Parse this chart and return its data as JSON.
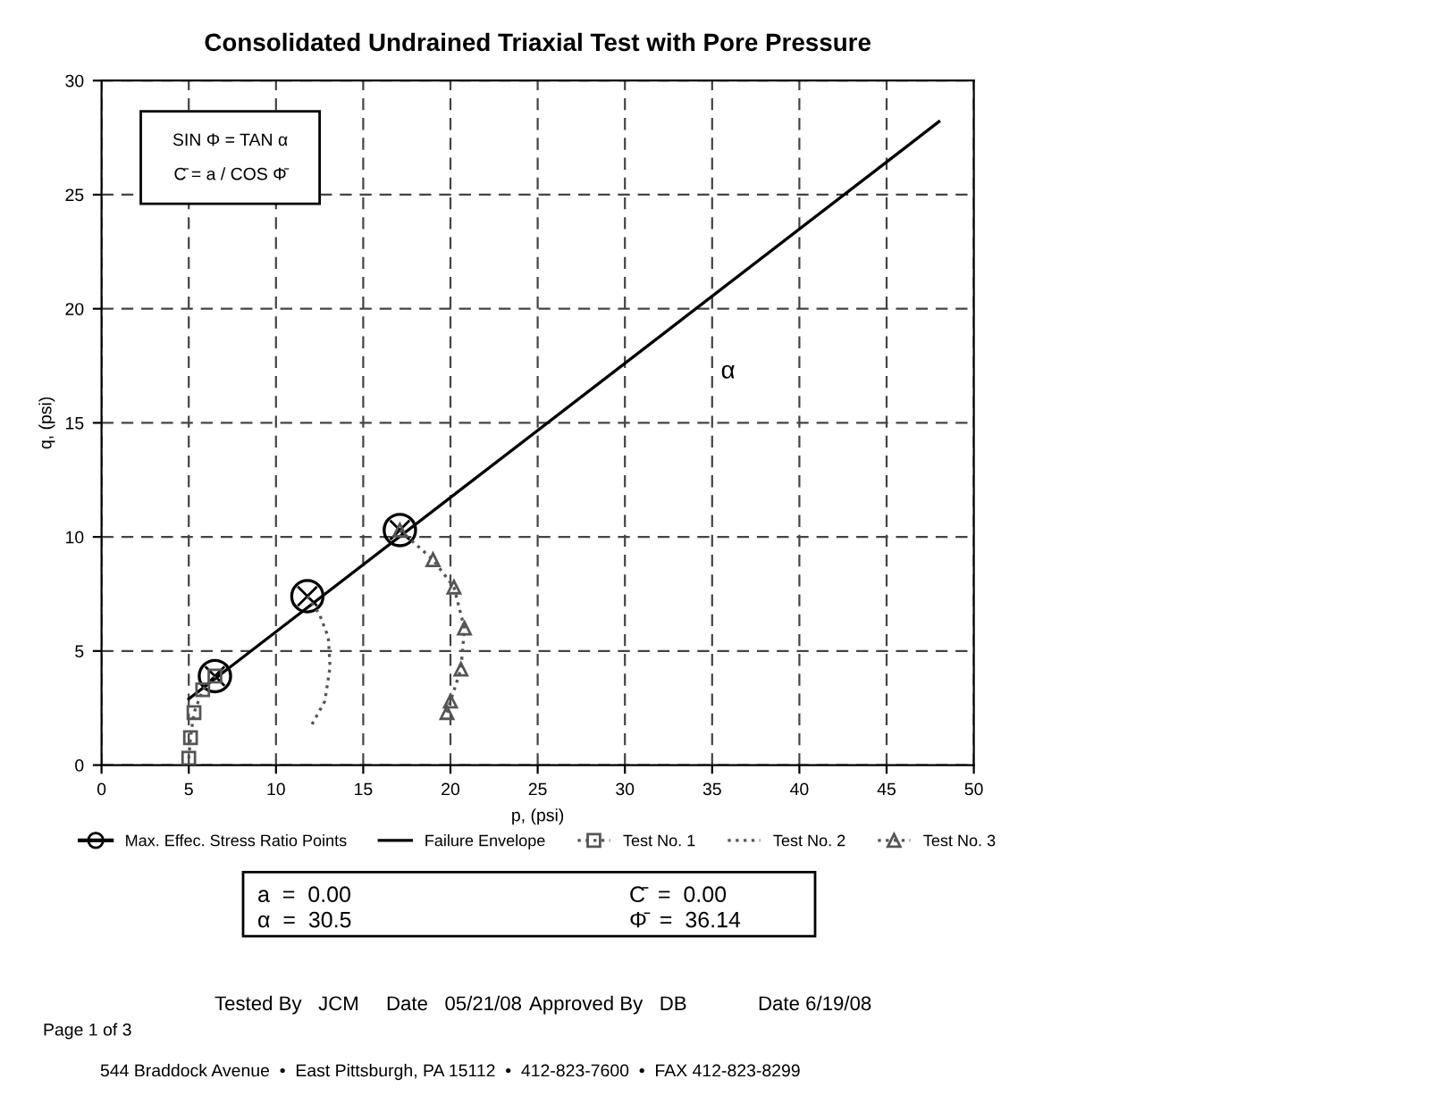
{
  "chart_data": {
    "type": "line",
    "title": "Consolidated Undrained Triaxial Test with Pore Pressure",
    "xlabel": "p, (psi)",
    "ylabel": "q, (psi)",
    "xlim": [
      0,
      50
    ],
    "ylim": [
      0,
      30
    ],
    "xticks": [
      0,
      5,
      10,
      15,
      20,
      25,
      30,
      35,
      40,
      45,
      50
    ],
    "yticks": [
      0,
      5,
      10,
      15,
      20,
      25,
      30
    ],
    "grid": true,
    "legend": "bottom",
    "series": [
      {
        "name": "Max. Effec. Stress Ratio Points",
        "type": "scatter",
        "color": "#000000",
        "marker": "circle",
        "x": [
          6.5,
          11.8,
          17.1
        ],
        "values": [
          3.9,
          7.4,
          10.3
        ]
      },
      {
        "name": "Failure Envelope",
        "color": "#000000",
        "marker": "none",
        "line_style": "solid",
        "x": [
          5,
          48
        ],
        "values": [
          2.9,
          28.2
        ]
      },
      {
        "name": "Test No. 1",
        "type": "line",
        "color": "#555555",
        "marker": "square",
        "line_style": "dotted",
        "x": [
          5.0,
          5.1,
          5.3,
          5.8,
          6.5
        ],
        "values": [
          0.3,
          1.2,
          2.3,
          3.3,
          3.9
        ]
      },
      {
        "name": "Test No. 2",
        "type": "line",
        "color": "#555555",
        "marker": "none",
        "line_style": "dotted",
        "x": [
          11.8,
          12.5,
          13.0,
          13.1,
          12.8,
          12.0
        ],
        "values": [
          7.4,
          6.6,
          5.6,
          4.3,
          2.8,
          1.7
        ]
      },
      {
        "name": "Test No. 3",
        "type": "line",
        "color": "#555555",
        "marker": "triangle",
        "line_style": "dotted",
        "x": [
          17.1,
          19.0,
          20.2,
          20.8,
          20.6,
          20.0,
          19.8
        ],
        "values": [
          10.3,
          9.0,
          7.8,
          6.0,
          4.2,
          2.8,
          2.3
        ]
      }
    ],
    "annotations": [
      "SIN Φ = TAN α",
      "C̄ = a / COS Φ̄",
      "α",
      "a  =  0.00",
      "α  =  30.5",
      "C̄  =  0.00",
      "Φ̄  =  36.14",
      "Tested By   JCM",
      "Date   05/21/08",
      "Approved By   DB",
      "Date 6/19/08",
      "Page 1 of 3",
      "544 Braddock Avenue  •  East Pittsburgh, PA 15112  •  412-823-7600  •  FAX 412-823-8299"
    ]
  }
}
